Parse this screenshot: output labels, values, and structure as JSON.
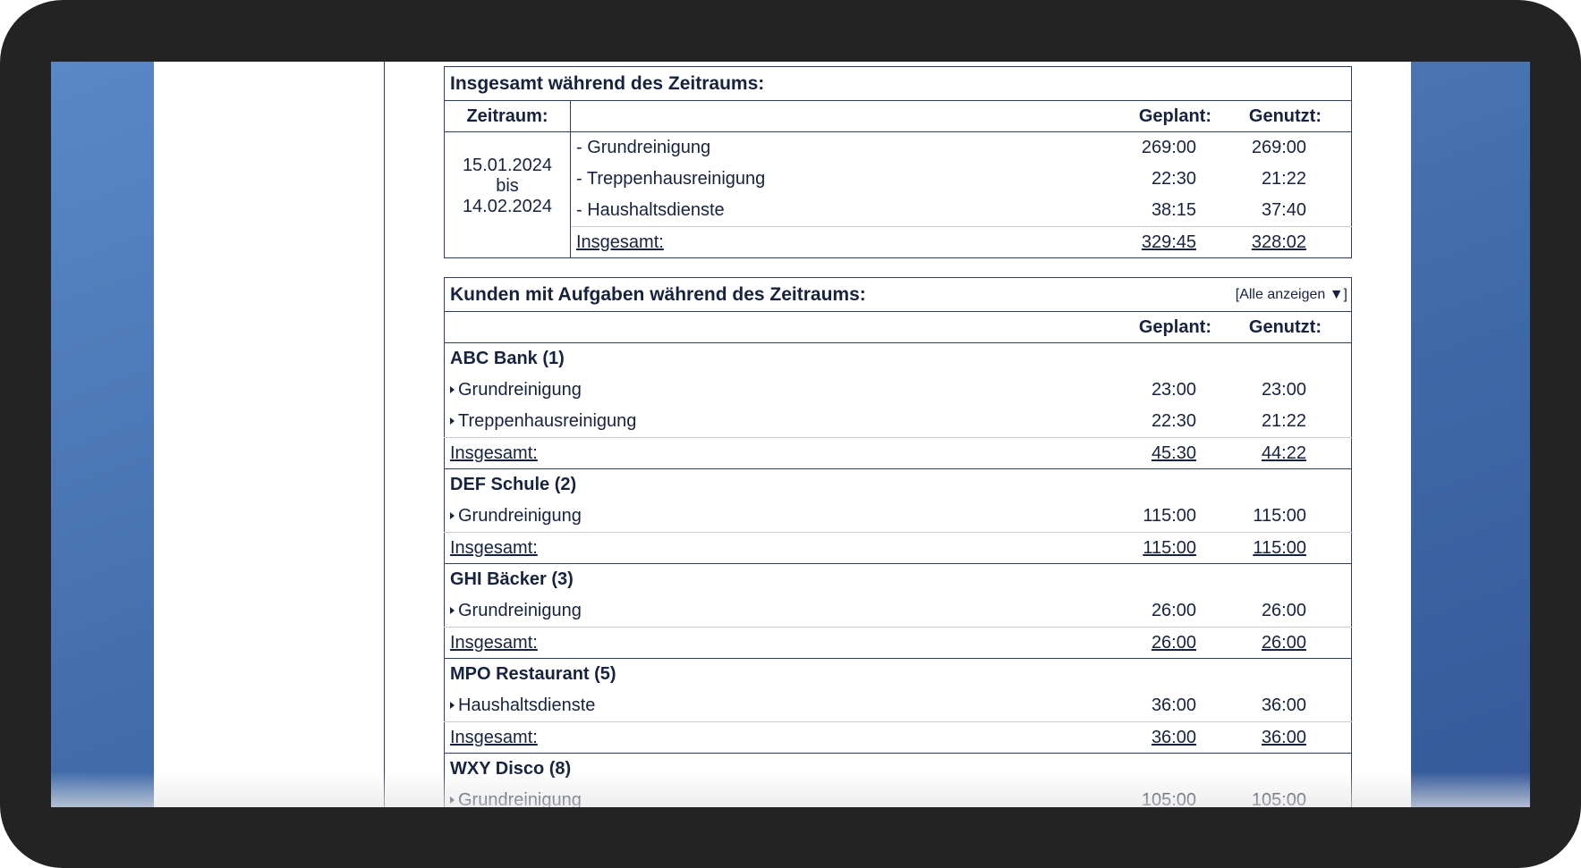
{
  "summary": {
    "title": "Insgesamt während des Zeitraums:",
    "headers": {
      "period": "Zeitraum:",
      "planned": "Geplant:",
      "used": "Genutzt:"
    },
    "period": {
      "from": "15.01.2024",
      "sep": "bis",
      "to": "14.02.2024"
    },
    "rows": [
      {
        "label": "- Grundreinigung",
        "planned": "269:00",
        "used": "269:00"
      },
      {
        "label": "- Treppenhausreinigung",
        "planned": "22:30",
        "used": "21:22"
      },
      {
        "label": "- Haushaltsdienste",
        "planned": "38:15",
        "used": "37:40"
      }
    ],
    "total": {
      "label": "Insgesamt:",
      "planned": "329:45",
      "used": "328:02"
    }
  },
  "customers": {
    "title": "Kunden mit Aufgaben während des Zeitraums:",
    "toggle": "[Alle anzeigen ▼]",
    "headers": {
      "planned": "Geplant:",
      "used": "Genutzt:"
    },
    "groups": [
      {
        "name": "ABC Bank (1)",
        "rows": [
          {
            "label": "Grundreinigung",
            "planned": "23:00",
            "used": "23:00"
          },
          {
            "label": "Treppenhausreinigung",
            "planned": "22:30",
            "used": "21:22"
          }
        ],
        "total": {
          "label": "Insgesamt:",
          "planned": "45:30",
          "used": "44:22"
        }
      },
      {
        "name": "DEF Schule (2)",
        "rows": [
          {
            "label": "Grundreinigung",
            "planned": "115:00",
            "used": "115:00"
          }
        ],
        "total": {
          "label": "Insgesamt:",
          "planned": "115:00",
          "used": "115:00"
        }
      },
      {
        "name": "GHI Bäcker (3)",
        "rows": [
          {
            "label": "Grundreinigung",
            "planned": "26:00",
            "used": "26:00"
          }
        ],
        "total": {
          "label": "Insgesamt:",
          "planned": "26:00",
          "used": "26:00"
        }
      },
      {
        "name": "MPO Restaurant (5)",
        "rows": [
          {
            "label": "Haushaltsdienste",
            "planned": "36:00",
            "used": "36:00"
          }
        ],
        "total": {
          "label": "Insgesamt:",
          "planned": "36:00",
          "used": "36:00"
        }
      },
      {
        "name": "WXY Disco (8)",
        "rows": [
          {
            "label": "Grundreinigung",
            "planned": "105:00",
            "used": "105:00"
          }
        ]
      }
    ]
  }
}
